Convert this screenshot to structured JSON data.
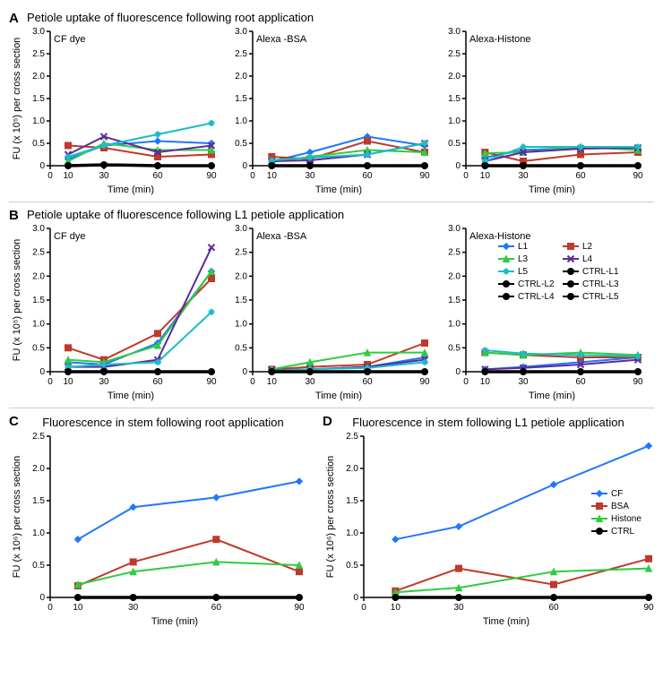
{
  "global": {
    "x_ticks": [
      0,
      10,
      30,
      60,
      90
    ],
    "x_label": "Time (min)",
    "y_label_small": "FU (x 10⁵) per cross section",
    "y_label_large": "FU (x 10⁶) per cross section",
    "background": "#ffffff"
  },
  "colorsL": {
    "L1": "#1f77ff",
    "L2": "#c0392b",
    "L3": "#2ecc40",
    "L4": "#5b2c9b",
    "L5": "#1bbdc6",
    "CTRL": "#000000"
  },
  "markersL": {
    "L1": "diamond",
    "L2": "square",
    "L3": "triangle",
    "L4": "x",
    "L5": "star",
    "CTRL": "circle"
  },
  "colorsCD": {
    "CF": "#1f77ff",
    "BSA": "#c0392b",
    "Histone": "#2ecc40",
    "CTRL": "#000000"
  },
  "markersCD": {
    "CF": "diamond",
    "BSA": "square",
    "Histone": "triangle",
    "CTRL": "circle"
  },
  "panelA": {
    "label": "A",
    "title": "Petiole uptake of fluorescence following root application",
    "ylim": [
      0,
      3.0
    ],
    "y_ticks": [
      0,
      0.5,
      1.0,
      1.5,
      2.0,
      2.5,
      3.0
    ],
    "charts": [
      {
        "in_label": "CF dye",
        "series": {
          "L1": [
            [
              10,
              0.15
            ],
            [
              30,
              0.45
            ],
            [
              60,
              0.55
            ],
            [
              90,
              0.5
            ]
          ],
          "L2": [
            [
              10,
              0.45
            ],
            [
              30,
              0.4
            ],
            [
              60,
              0.2
            ],
            [
              90,
              0.25
            ]
          ],
          "L3": [
            [
              10,
              0.1
            ],
            [
              30,
              0.5
            ],
            [
              60,
              0.35
            ],
            [
              90,
              0.35
            ]
          ],
          "L4": [
            [
              10,
              0.25
            ],
            [
              30,
              0.65
            ],
            [
              60,
              0.3
            ],
            [
              90,
              0.45
            ]
          ],
          "L5": [
            [
              10,
              0.2
            ],
            [
              30,
              0.45
            ],
            [
              60,
              0.7
            ],
            [
              90,
              0.95
            ]
          ],
          "CTRL": [
            [
              10,
              0
            ],
            [
              30,
              0.02
            ],
            [
              60,
              0.0
            ],
            [
              90,
              0.0
            ]
          ]
        }
      },
      {
        "in_label": "Alexa -BSA",
        "series": {
          "L1": [
            [
              10,
              0.1
            ],
            [
              30,
              0.3
            ],
            [
              60,
              0.65
            ],
            [
              90,
              0.45
            ]
          ],
          "L2": [
            [
              10,
              0.2
            ],
            [
              30,
              0.15
            ],
            [
              60,
              0.55
            ],
            [
              90,
              0.3
            ]
          ],
          "L3": [
            [
              10,
              0.08
            ],
            [
              30,
              0.2
            ],
            [
              60,
              0.35
            ],
            [
              90,
              0.3
            ]
          ],
          "L4": [
            [
              10,
              0.1
            ],
            [
              30,
              0.12
            ],
            [
              60,
              0.25
            ],
            [
              90,
              0.5
            ]
          ],
          "L5": [
            [
              10,
              0.12
            ],
            [
              30,
              0.18
            ],
            [
              60,
              0.25
            ],
            [
              90,
              0.5
            ]
          ],
          "CTRL": [
            [
              10,
              0
            ],
            [
              30,
              0.0
            ],
            [
              60,
              0.0
            ],
            [
              90,
              0.0
            ]
          ]
        }
      },
      {
        "in_label": "Alexa-Histone",
        "series": {
          "L1": [
            [
              10,
              0.18
            ],
            [
              30,
              0.35
            ],
            [
              60,
              0.4
            ],
            [
              90,
              0.4
            ]
          ],
          "L2": [
            [
              10,
              0.3
            ],
            [
              30,
              0.1
            ],
            [
              60,
              0.25
            ],
            [
              90,
              0.3
            ]
          ],
          "L3": [
            [
              10,
              0.28
            ],
            [
              30,
              0.3
            ],
            [
              60,
              0.42
            ],
            [
              90,
              0.35
            ]
          ],
          "L4": [
            [
              10,
              0.1
            ],
            [
              30,
              0.3
            ],
            [
              60,
              0.38
            ],
            [
              90,
              0.4
            ]
          ],
          "L5": [
            [
              10,
              0.1
            ],
            [
              30,
              0.42
            ],
            [
              60,
              0.42
            ],
            [
              90,
              0.42
            ]
          ],
          "CTRL": [
            [
              10,
              0
            ],
            [
              30,
              0.0
            ],
            [
              60,
              0.0
            ],
            [
              90,
              0.0
            ]
          ]
        }
      }
    ]
  },
  "panelB": {
    "label": "B",
    "title": "Petiole uptake of fluorescence following L1 petiole application",
    "ylim": [
      0,
      3.0
    ],
    "y_ticks": [
      0,
      0.5,
      1.0,
      1.5,
      2.0,
      2.5,
      3.0
    ],
    "legend_entries": [
      [
        "L1",
        "L1"
      ],
      [
        "L2",
        "L2"
      ],
      [
        "L3",
        "L3"
      ],
      [
        "L4",
        "L4"
      ],
      [
        "L5",
        "L5"
      ],
      [
        "CTRL",
        "CTRL-L1"
      ],
      [
        "CTRL",
        "CTRL-L2"
      ],
      [
        "CTRL",
        "CTRL-L3"
      ],
      [
        "CTRL",
        "CTRL-L4"
      ],
      [
        "CTRL",
        "CTRL-L5"
      ]
    ],
    "charts": [
      {
        "in_label": "CF dye",
        "series": {
          "L1": [
            [
              10,
              0.2
            ],
            [
              30,
              0.15
            ],
            [
              60,
              0.6
            ],
            [
              90,
              2.1
            ]
          ],
          "L2": [
            [
              10,
              0.5
            ],
            [
              30,
              0.25
            ],
            [
              60,
              0.8
            ],
            [
              90,
              1.95
            ]
          ],
          "L3": [
            [
              10,
              0.25
            ],
            [
              30,
              0.2
            ],
            [
              60,
              0.55
            ],
            [
              90,
              2.1
            ]
          ],
          "L4": [
            [
              10,
              0.1
            ],
            [
              30,
              0.1
            ],
            [
              60,
              0.25
            ],
            [
              90,
              2.6
            ]
          ],
          "L5": [
            [
              10,
              0.1
            ],
            [
              30,
              0.15
            ],
            [
              60,
              0.2
            ],
            [
              90,
              1.25
            ]
          ],
          "CTRL": [
            [
              10,
              0
            ],
            [
              30,
              0.0
            ],
            [
              60,
              0.0
            ],
            [
              90,
              0.0
            ]
          ]
        }
      },
      {
        "in_label": "Alexa -BSA",
        "series": {
          "L1": [
            [
              10,
              0.02
            ],
            [
              30,
              0.05
            ],
            [
              60,
              0.1
            ],
            [
              90,
              0.3
            ]
          ],
          "L2": [
            [
              10,
              0.05
            ],
            [
              30,
              0.1
            ],
            [
              60,
              0.15
            ],
            [
              90,
              0.6
            ]
          ],
          "L3": [
            [
              10,
              0.05
            ],
            [
              30,
              0.2
            ],
            [
              60,
              0.4
            ],
            [
              90,
              0.4
            ]
          ],
          "L4": [
            [
              10,
              0.03
            ],
            [
              30,
              0.05
            ],
            [
              60,
              0.1
            ],
            [
              90,
              0.25
            ]
          ],
          "L5": [
            [
              10,
              0.02
            ],
            [
              30,
              0.05
            ],
            [
              60,
              0.08
            ],
            [
              90,
              0.2
            ]
          ],
          "CTRL": [
            [
              10,
              0
            ],
            [
              30,
              0.0
            ],
            [
              60,
              0.0
            ],
            [
              90,
              0.0
            ]
          ]
        }
      },
      {
        "in_label": "Alexa-Histone",
        "series": {
          "L1": [
            [
              10,
              0.05
            ],
            [
              30,
              0.1
            ],
            [
              60,
              0.2
            ],
            [
              90,
              0.3
            ]
          ],
          "L2": [
            [
              10,
              0.4
            ],
            [
              30,
              0.35
            ],
            [
              60,
              0.3
            ],
            [
              90,
              0.3
            ]
          ],
          "L3": [
            [
              10,
              0.4
            ],
            [
              30,
              0.35
            ],
            [
              60,
              0.4
            ],
            [
              90,
              0.35
            ]
          ],
          "L4": [
            [
              10,
              0.05
            ],
            [
              30,
              0.08
            ],
            [
              60,
              0.15
            ],
            [
              90,
              0.25
            ]
          ],
          "L5": [
            [
              10,
              0.45
            ],
            [
              30,
              0.38
            ],
            [
              60,
              0.35
            ],
            [
              90,
              0.32
            ]
          ],
          "CTRL": [
            [
              10,
              0
            ],
            [
              30,
              0.0
            ],
            [
              60,
              0.0
            ],
            [
              90,
              0.0
            ]
          ]
        }
      }
    ]
  },
  "panelC": {
    "label": "C",
    "title": "Fluorescence in stem following root application",
    "ylim": [
      0,
      2.5
    ],
    "y_ticks": [
      0,
      0.5,
      1.0,
      1.5,
      2.0,
      2.5
    ],
    "series": {
      "CF": [
        [
          10,
          0.9
        ],
        [
          30,
          1.4
        ],
        [
          60,
          1.55
        ],
        [
          90,
          1.8
        ]
      ],
      "BSA": [
        [
          10,
          0.18
        ],
        [
          30,
          0.55
        ],
        [
          60,
          0.9
        ],
        [
          90,
          0.4
        ]
      ],
      "Histone": [
        [
          10,
          0.2
        ],
        [
          30,
          0.4
        ],
        [
          60,
          0.55
        ],
        [
          90,
          0.5
        ]
      ],
      "CTRL": [
        [
          10,
          0
        ],
        [
          30,
          0
        ],
        [
          60,
          0
        ],
        [
          90,
          0
        ]
      ]
    }
  },
  "panelD": {
    "label": "D",
    "title": "Fluorescence in stem following L1 petiole application",
    "ylim": [
      0,
      2.5
    ],
    "y_ticks": [
      0,
      0.5,
      1.0,
      1.5,
      2.0,
      2.5
    ],
    "legend_entries": [
      [
        "CF",
        "CF"
      ],
      [
        "BSA",
        "BSA"
      ],
      [
        "Histone",
        "Histone"
      ],
      [
        "CTRL",
        "CTRL"
      ]
    ],
    "series": {
      "CF": [
        [
          10,
          0.9
        ],
        [
          30,
          1.1
        ],
        [
          60,
          1.75
        ],
        [
          90,
          2.35
        ]
      ],
      "BSA": [
        [
          10,
          0.1
        ],
        [
          30,
          0.45
        ],
        [
          60,
          0.2
        ],
        [
          90,
          0.6
        ]
      ],
      "Histone": [
        [
          10,
          0.08
        ],
        [
          30,
          0.15
        ],
        [
          60,
          0.4
        ],
        [
          90,
          0.45
        ]
      ],
      "CTRL": [
        [
          10,
          0
        ],
        [
          30,
          0
        ],
        [
          60,
          0
        ],
        [
          90,
          0
        ]
      ]
    }
  }
}
